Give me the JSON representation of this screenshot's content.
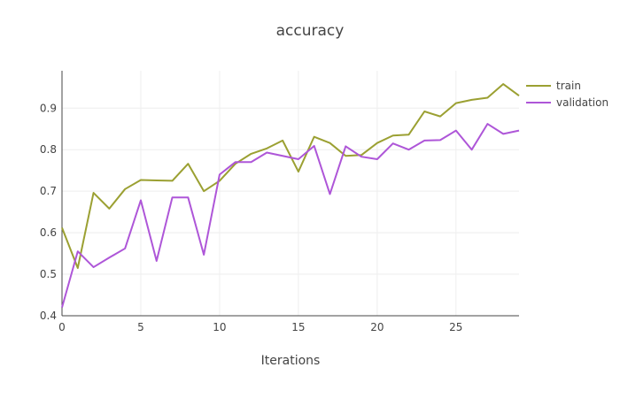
{
  "chart_data": {
    "type": "line",
    "title": "accuracy",
    "xlabel": "Iterations",
    "ylabel": "",
    "xlim": [
      0,
      29
    ],
    "ylim": [
      0.4,
      0.99
    ],
    "xticks": [
      0,
      5,
      10,
      15,
      20,
      25
    ],
    "yticks": [
      0.4,
      0.5,
      0.6,
      0.7,
      0.8,
      0.9
    ],
    "grid": true,
    "legend_position": "top-right",
    "x": [
      0,
      1,
      2,
      3,
      4,
      5,
      6,
      7,
      8,
      9,
      10,
      11,
      12,
      13,
      14,
      15,
      16,
      17,
      18,
      19,
      20,
      21,
      22,
      23,
      24,
      25,
      26,
      27,
      28,
      29
    ],
    "series": [
      {
        "name": "train",
        "color": "#9ba032",
        "values": [
          0.612,
          0.515,
          0.696,
          0.658,
          0.705,
          0.727,
          0.726,
          0.725,
          0.766,
          0.7,
          0.725,
          0.766,
          0.79,
          0.803,
          0.822,
          0.747,
          0.831,
          0.816,
          0.785,
          0.787,
          0.816,
          0.834,
          0.836,
          0.892,
          0.88,
          0.912,
          0.92,
          0.925,
          0.958,
          0.93
        ]
      },
      {
        "name": "validation",
        "color": "#ae56d8",
        "values": [
          0.42,
          0.555,
          0.517,
          0.54,
          0.562,
          0.678,
          0.532,
          0.685,
          0.685,
          0.547,
          0.74,
          0.77,
          0.77,
          0.793,
          0.785,
          0.777,
          0.809,
          0.693,
          0.808,
          0.783,
          0.777,
          0.815,
          0.8,
          0.822,
          0.823,
          0.846,
          0.8,
          0.862,
          0.838,
          0.846
        ]
      }
    ]
  }
}
